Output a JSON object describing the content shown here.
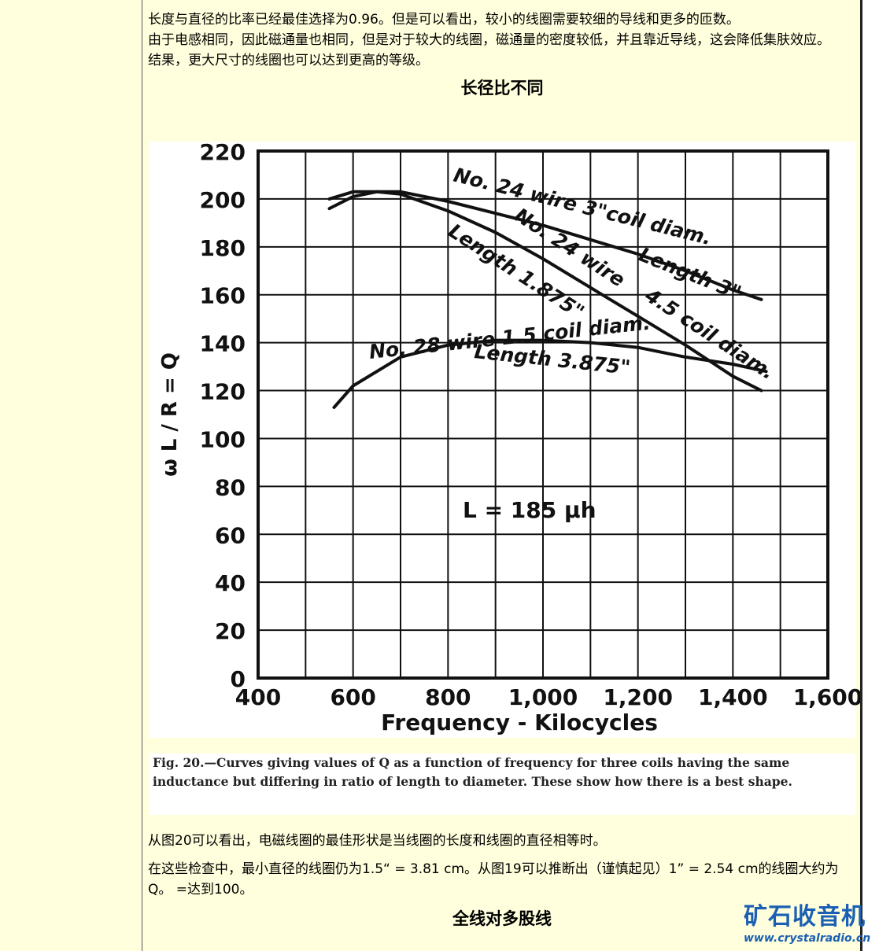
{
  "paragraphs_top": [
    "长度与直径的比率已经最佳选择为0.96。但是可以看出，较小的线圈需要较细的导线和更多的匝数。",
    "由于电感相同，因此磁通量也相同，但是对于较大的线圈，磁通量的密度较低，并且靠近导线，这会降低集肤效应。",
    "结果，更大尺寸的线圈也可以达到更高的等级。"
  ],
  "heading1": "长径比不同",
  "chart_data": {
    "type": "line",
    "x_ticks": [
      "400",
      "600",
      "800",
      "1,000",
      "1,200",
      "1,400",
      "1,600"
    ],
    "y_ticks": [
      "0",
      "20",
      "40",
      "60",
      "80",
      "100",
      "120",
      "140",
      "160",
      "180",
      "200",
      "220"
    ],
    "xlim": [
      400,
      1600
    ],
    "ylim": [
      0,
      220
    ],
    "xlabel": "Frequency - Kilocycles",
    "ylabel": "ω L / R = Q",
    "grid": true,
    "annotation": "L = 185 μh",
    "series": [
      {
        "name_lines": [
          "No. 24 wire   3\"coil diam.",
          "Length 3\""
        ],
        "x": [
          550,
          600,
          700,
          800,
          900,
          1000,
          1100,
          1200,
          1300,
          1400,
          1460
        ],
        "y": [
          200,
          203,
          203,
          199,
          194,
          189,
          183,
          177,
          170,
          162,
          158
        ]
      },
      {
        "name_lines": [
          "No. 24 wire",
          "4.5 coil diam.",
          "Length 1.875\""
        ],
        "x": [
          550,
          600,
          650,
          700,
          800,
          900,
          1000,
          1100,
          1200,
          1300,
          1400,
          1460
        ],
        "y": [
          196,
          201,
          203,
          202,
          195,
          186,
          175,
          163,
          151,
          139,
          126,
          120
        ]
      },
      {
        "name_lines": [
          "No. 28 wire  1.5 coil diam.",
          "Length 3.875\""
        ],
        "x": [
          560,
          600,
          700,
          800,
          900,
          1000,
          1100,
          1200,
          1300,
          1400,
          1470
        ],
        "y": [
          113,
          122,
          134,
          139,
          141,
          141,
          140,
          138,
          134,
          131,
          128
        ]
      }
    ]
  },
  "caption": "Fig. 20.—Curves giving values of Q as a function of frequency for three coils having the same inductance but differing in ratio of length to diameter.  These show how there is a best shape.",
  "paragraphs_bottom": [
    "从图20可以看出，电磁线圈的最佳形状是当线圈的长度和线圈的直径相等时。",
    "在这些检查中，最小直径的线圈仍为1.5“ = 3.81 cm。从图19可以推断出（谨慎起见）1” = 2.54 cm的线圈大约为Q。 =达到100。"
  ],
  "heading2": "全线对多股线",
  "logo": {
    "cn": "矿石收音机",
    "url": "www.crystalradio.cn"
  }
}
